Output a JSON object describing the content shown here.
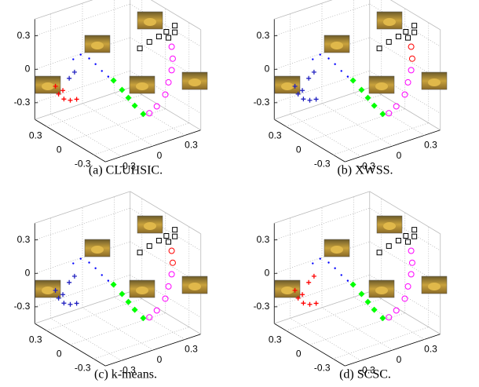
{
  "chart_data": [
    {
      "type": "scatter3d",
      "caption": "(a)  CLUHSIC.",
      "xlim": [
        -0.45,
        0.45
      ],
      "ylim": [
        -0.45,
        0.45
      ],
      "zlim": [
        -0.45,
        0.45
      ],
      "xticks": [
        -0.3,
        0,
        0.3
      ],
      "yticks": [
        -0.3,
        0,
        0.3
      ],
      "zticks": [
        -0.3,
        0,
        0.3
      ],
      "grid": true,
      "series": [
        {
          "marker": "square",
          "color": "#000000",
          "x": [
            -0.2,
            -0.2,
            -0.2,
            -0.2,
            -0.2,
            -0.2,
            -0.2
          ],
          "y": [
            0.06,
            0.15,
            0.24,
            0.31,
            0.39,
            0.33,
            0.39
          ],
          "z": [
            0.3,
            0.33,
            0.35,
            0.37,
            0.4,
            0.31,
            0.34
          ]
        },
        {
          "marker": "circle",
          "color": "#ff00ff",
          "x": [
            -0.2,
            -0.2,
            -0.2,
            -0.2,
            -0.2,
            -0.2,
            -0.2
          ],
          "y": [
            0.36,
            0.37,
            0.36,
            0.33,
            0.3,
            0.22,
            0.15
          ],
          "z": [
            0.22,
            0.11,
            0.01,
            -0.09,
            -0.19,
            -0.27,
            -0.31
          ]
        },
        {
          "marker": "diamond",
          "color": "#00ff00",
          "x": [
            0,
            0,
            0,
            0,
            0
          ],
          "y": [
            -0.04,
            0.04,
            0.1,
            0.16,
            0.24
          ],
          "z": [
            -0.04,
            -0.15,
            -0.24,
            -0.33,
            -0.43
          ]
        },
        {
          "marker": "dot",
          "color": "#0000ff",
          "x": [
            0,
            0,
            0,
            0,
            0,
            0
          ],
          "y": [
            -0.42,
            -0.35,
            -0.27,
            -0.21,
            -0.15,
            -0.09
          ],
          "z": [
            0.27,
            0.29,
            0.23,
            0.16,
            0.08,
            0.01
          ]
        },
        {
          "marker": "plus",
          "color": "#2020c0",
          "x": [
            0.2,
            0.2
          ],
          "y": [
            -0.31,
            -0.26
          ],
          "z": [
            -0.02,
            0.02
          ]
        },
        {
          "marker": "plus",
          "color": "#ff0000",
          "x": [
            0.2,
            0.2,
            0.2,
            0.2,
            0.2,
            0.2
          ],
          "y": [
            -0.44,
            -0.41,
            -0.36,
            -0.3,
            -0.24,
            -0.37
          ],
          "z": [
            -0.05,
            -0.13,
            -0.19,
            -0.22,
            -0.23,
            -0.11
          ]
        }
      ]
    },
    {
      "type": "scatter3d",
      "caption": "(b)  XWSS.",
      "xlim": [
        -0.45,
        0.45
      ],
      "ylim": [
        -0.45,
        0.45
      ],
      "zlim": [
        -0.45,
        0.45
      ],
      "xticks": [
        -0.3,
        0,
        0.3
      ],
      "yticks": [
        -0.3,
        0,
        0.3
      ],
      "zticks": [
        -0.3,
        0,
        0.3
      ],
      "grid": true,
      "series": [
        {
          "marker": "square",
          "color": "#000000",
          "x": [
            -0.2,
            -0.2,
            -0.2,
            -0.2,
            -0.2,
            -0.2,
            -0.2
          ],
          "y": [
            0.06,
            0.15,
            0.24,
            0.31,
            0.39,
            0.33,
            0.39
          ],
          "z": [
            0.3,
            0.33,
            0.35,
            0.37,
            0.4,
            0.31,
            0.34
          ]
        },
        {
          "marker": "circle",
          "color": "#ff0000",
          "x": [
            -0.2,
            -0.2
          ],
          "y": [
            0.36,
            0.37
          ],
          "z": [
            0.22,
            0.11
          ]
        },
        {
          "marker": "circle",
          "color": "#ff00ff",
          "x": [
            -0.2,
            -0.2,
            -0.2,
            -0.2,
            -0.2
          ],
          "y": [
            0.36,
            0.33,
            0.3,
            0.22,
            0.15
          ],
          "z": [
            0.01,
            -0.09,
            -0.19,
            -0.27,
            -0.31
          ]
        },
        {
          "marker": "diamond",
          "color": "#00ff00",
          "x": [
            0,
            0,
            0,
            0,
            0
          ],
          "y": [
            -0.04,
            0.04,
            0.1,
            0.16,
            0.24
          ],
          "z": [
            -0.04,
            -0.15,
            -0.24,
            -0.33,
            -0.43
          ]
        },
        {
          "marker": "dot",
          "color": "#0000ff",
          "x": [
            0,
            0,
            0,
            0,
            0,
            0
          ],
          "y": [
            -0.42,
            -0.35,
            -0.27,
            -0.21,
            -0.15,
            -0.09
          ],
          "z": [
            0.27,
            0.29,
            0.23,
            0.16,
            0.08,
            0.01
          ]
        },
        {
          "marker": "plus",
          "color": "#2020c0",
          "x": [
            0.2,
            0.2,
            0.2,
            0.2,
            0.2,
            0.2,
            0.2,
            0.2
          ],
          "y": [
            -0.31,
            -0.26,
            -0.44,
            -0.41,
            -0.36,
            -0.3,
            -0.24,
            -0.37
          ],
          "z": [
            -0.02,
            0.02,
            -0.05,
            -0.13,
            -0.19,
            -0.22,
            -0.23,
            -0.11
          ]
        }
      ]
    },
    {
      "type": "scatter3d",
      "caption": "(c)  k-means.",
      "xlim": [
        -0.45,
        0.45
      ],
      "ylim": [
        -0.45,
        0.45
      ],
      "zlim": [
        -0.45,
        0.45
      ],
      "xticks": [
        -0.3,
        0,
        0.3
      ],
      "yticks": [
        -0.3,
        0,
        0.3
      ],
      "zticks": [
        -0.3,
        0,
        0.3
      ],
      "grid": true,
      "series": [
        {
          "marker": "square",
          "color": "#000000",
          "x": [
            -0.2,
            -0.2,
            -0.2,
            -0.2,
            -0.2,
            -0.2,
            -0.2
          ],
          "y": [
            0.06,
            0.15,
            0.24,
            0.31,
            0.39,
            0.33,
            0.39
          ],
          "z": [
            0.3,
            0.33,
            0.35,
            0.37,
            0.4,
            0.31,
            0.34
          ]
        },
        {
          "marker": "circle",
          "color": "#ff0000",
          "x": [
            -0.2,
            -0.2
          ],
          "y": [
            0.36,
            0.37
          ],
          "z": [
            0.22,
            0.11
          ]
        },
        {
          "marker": "circle",
          "color": "#ff00ff",
          "x": [
            -0.2,
            -0.2,
            -0.2,
            -0.2,
            -0.2
          ],
          "y": [
            0.36,
            0.33,
            0.3,
            0.22,
            0.15
          ],
          "z": [
            0.01,
            -0.09,
            -0.19,
            -0.27,
            -0.31
          ]
        },
        {
          "marker": "diamond",
          "color": "#00ff00",
          "x": [
            0,
            0,
            0,
            0,
            0
          ],
          "y": [
            -0.04,
            0.04,
            0.1,
            0.16,
            0.24
          ],
          "z": [
            -0.04,
            -0.15,
            -0.24,
            -0.33,
            -0.43
          ]
        },
        {
          "marker": "dot",
          "color": "#0000ff",
          "x": [
            0,
            0,
            0,
            0,
            0,
            0
          ],
          "y": [
            -0.42,
            -0.35,
            -0.27,
            -0.21,
            -0.15,
            -0.09
          ],
          "z": [
            0.27,
            0.29,
            0.23,
            0.16,
            0.08,
            0.01
          ]
        },
        {
          "marker": "plus",
          "color": "#2020c0",
          "x": [
            0.2,
            0.2,
            0.2,
            0.2,
            0.2,
            0.2,
            0.2,
            0.2
          ],
          "y": [
            -0.31,
            -0.26,
            -0.44,
            -0.41,
            -0.36,
            -0.3,
            -0.24,
            -0.37
          ],
          "z": [
            -0.02,
            0.02,
            -0.05,
            -0.13,
            -0.19,
            -0.22,
            -0.23,
            -0.11
          ]
        }
      ]
    },
    {
      "type": "scatter3d",
      "caption": "(d)  SCSC.",
      "xlim": [
        -0.45,
        0.45
      ],
      "ylim": [
        -0.45,
        0.45
      ],
      "zlim": [
        -0.45,
        0.45
      ],
      "xticks": [
        -0.3,
        0,
        0.3
      ],
      "yticks": [
        -0.3,
        0,
        0.3
      ],
      "zticks": [
        -0.3,
        0,
        0.3
      ],
      "grid": true,
      "series": [
        {
          "marker": "square",
          "color": "#000000",
          "x": [
            -0.2,
            -0.2,
            -0.2,
            -0.2,
            -0.2,
            -0.2,
            -0.2
          ],
          "y": [
            0.06,
            0.15,
            0.24,
            0.31,
            0.39,
            0.33,
            0.39
          ],
          "z": [
            0.3,
            0.33,
            0.35,
            0.37,
            0.4,
            0.31,
            0.34
          ]
        },
        {
          "marker": "circle",
          "color": "#ff00ff",
          "x": [
            -0.2,
            -0.2,
            -0.2,
            -0.2,
            -0.2,
            -0.2,
            -0.2
          ],
          "y": [
            0.36,
            0.37,
            0.36,
            0.33,
            0.3,
            0.22,
            0.15
          ],
          "z": [
            0.22,
            0.11,
            0.01,
            -0.09,
            -0.19,
            -0.27,
            -0.31
          ]
        },
        {
          "marker": "diamond",
          "color": "#00ff00",
          "x": [
            0,
            0,
            0,
            0,
            0
          ],
          "y": [
            -0.04,
            0.04,
            0.1,
            0.16,
            0.24
          ],
          "z": [
            -0.04,
            -0.15,
            -0.24,
            -0.33,
            -0.43
          ]
        },
        {
          "marker": "dot",
          "color": "#0000ff",
          "x": [
            0,
            0,
            0,
            0,
            0,
            0
          ],
          "y": [
            -0.42,
            -0.35,
            -0.27,
            -0.21,
            -0.15,
            -0.09
          ],
          "z": [
            0.27,
            0.29,
            0.23,
            0.16,
            0.08,
            0.01
          ]
        },
        {
          "marker": "plus",
          "color": "#ff0000",
          "x": [
            0.2,
            0.2,
            0.2,
            0.2,
            0.2,
            0.2,
            0.2,
            0.2
          ],
          "y": [
            -0.31,
            -0.26,
            -0.44,
            -0.41,
            -0.36,
            -0.3,
            -0.24,
            -0.37
          ],
          "z": [
            -0.02,
            0.02,
            -0.05,
            -0.13,
            -0.19,
            -0.22,
            -0.23,
            -0.11
          ]
        }
      ]
    }
  ]
}
